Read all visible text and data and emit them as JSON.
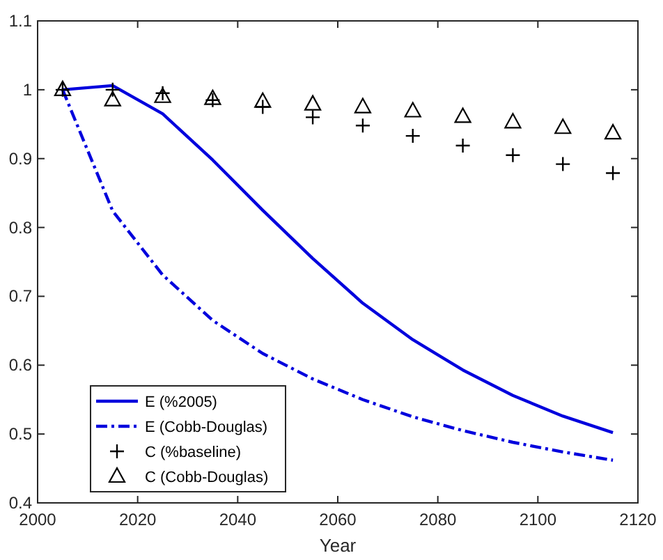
{
  "chart_data": {
    "type": "line",
    "xlabel": "Year",
    "x": [
      2005,
      2015,
      2025,
      2035,
      2045,
      2055,
      2065,
      2075,
      2085,
      2095,
      2105,
      2115
    ],
    "series": [
      {
        "name": "E (%2005)",
        "color": "#0000dd",
        "line_style": "solid",
        "marker": "none",
        "values": [
          1.0,
          1.006,
          0.965,
          0.898,
          0.825,
          0.755,
          0.69,
          0.637,
          0.593,
          0.556,
          0.526,
          0.502
        ]
      },
      {
        "name": "E (Cobb-Douglas)",
        "color": "#0000dd",
        "line_style": "dashdot",
        "marker": "none",
        "values": [
          1.0,
          0.824,
          0.731,
          0.665,
          0.617,
          0.58,
          0.55,
          0.525,
          0.505,
          0.488,
          0.474,
          0.462
        ]
      },
      {
        "name": "C (%baseline)",
        "type": "scatter",
        "color": "#000000",
        "marker": "cross",
        "values": [
          1.0,
          1.0,
          0.995,
          0.985,
          0.975,
          0.96,
          0.948,
          0.933,
          0.919,
          0.905,
          0.892,
          0.879
        ]
      },
      {
        "name": "C (Cobb-Douglas)",
        "type": "scatter",
        "color": "#000000",
        "marker": "triangle",
        "values": [
          1.0,
          0.985,
          0.99,
          0.987,
          0.983,
          0.979,
          0.975,
          0.969,
          0.961,
          0.953,
          0.945,
          0.937
        ]
      }
    ],
    "xlim": [
      2000,
      2120
    ],
    "xticks": [
      2000,
      2020,
      2040,
      2060,
      2080,
      2100,
      2120
    ],
    "ylim": [
      0.4,
      1.1
    ],
    "yticks": [
      0.4,
      0.5,
      0.6,
      0.7,
      0.8,
      0.9,
      1,
      1.1
    ],
    "grid": false,
    "legend": "bottom left"
  }
}
